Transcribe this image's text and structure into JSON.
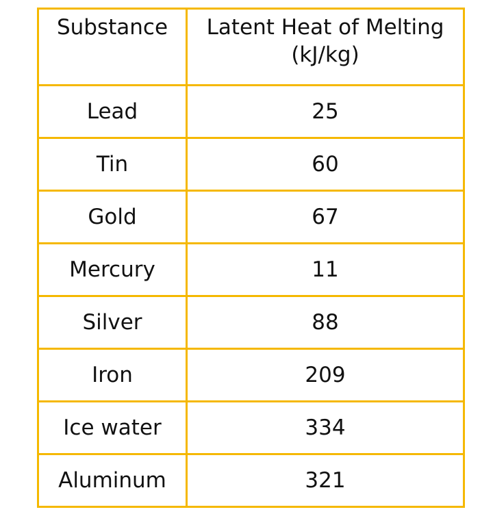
{
  "table": {
    "headers": {
      "substance": "Substance",
      "latent_line1": "Latent Heat of Melting",
      "latent_line2": "(kJ/kg)"
    },
    "rows": [
      {
        "substance": "Lead",
        "value": "25"
      },
      {
        "substance": "Tin",
        "value": "60"
      },
      {
        "substance": "Gold",
        "value": "67"
      },
      {
        "substance": "Mercury",
        "value": "11"
      },
      {
        "substance": "Silver",
        "value": "88"
      },
      {
        "substance": "Iron",
        "value": "209"
      },
      {
        "substance": "Ice water",
        "value": "334"
      },
      {
        "substance": "Aluminum",
        "value": "321"
      }
    ],
    "border_color": "#f5b800"
  }
}
